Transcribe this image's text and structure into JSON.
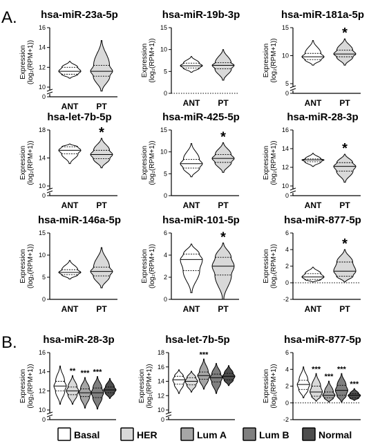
{
  "panel_labels": [
    "A.",
    "B."
  ],
  "y_label": "Expression",
  "y_label_unit": "(log₂(RPM+1))",
  "colors": {
    "Basal": "#ffffff",
    "HER": "#d9d9d9",
    "Lum A": "#a6a6a6",
    "Lum B": "#7f7f7f",
    "Normal": "#4d4d4d"
  },
  "legend": [
    "Basal",
    "HER",
    "Lum A",
    "Lum B",
    "Normal"
  ],
  "chart_data": [
    {
      "type": "violin",
      "title": "hsa-miR-23a-5p",
      "categories": [
        "ANT",
        "PT"
      ],
      "ylim": [
        0,
        16
      ],
      "ticks": [
        0,
        10,
        12,
        14,
        16
      ],
      "axis_break": true,
      "annotations": [
        "",
        ""
      ],
      "series": [
        {
          "name": "ANT",
          "fill": "#ffffff",
          "min": 10.9,
          "q1": 11.3,
          "median": 11.6,
          "q3": 12.0,
          "max": 12.6
        },
        {
          "name": "PT",
          "fill": "#d9d9d9",
          "min": 9.6,
          "q1": 11.1,
          "median": 11.6,
          "q3": 12.2,
          "max": 14.7
        }
      ]
    },
    {
      "type": "violin",
      "title": "hsa-miR-19b-3p",
      "categories": [
        "ANT",
        "PT"
      ],
      "ylim": [
        0,
        15
      ],
      "ticks": [
        0,
        5,
        10,
        15
      ],
      "axis_break": false,
      "dotted_zero": true,
      "annotations": [
        "",
        ""
      ],
      "series": [
        {
          "name": "ANT",
          "fill": "#ffffff",
          "min": 4.8,
          "q1": 5.8,
          "median": 6.3,
          "q3": 6.9,
          "max": 8.4
        },
        {
          "name": "PT",
          "fill": "#d9d9d9",
          "min": 3.0,
          "q1": 5.6,
          "median": 6.4,
          "q3": 7.0,
          "max": 10.0
        }
      ]
    },
    {
      "type": "violin",
      "title": "hsa-miR-181a-5p",
      "categories": [
        "ANT",
        "PT"
      ],
      "ylim": [
        0,
        15
      ],
      "ticks": [
        0,
        5,
        10,
        15
      ],
      "axis_break": true,
      "annotations": [
        "",
        "*"
      ],
      "series": [
        {
          "name": "ANT",
          "fill": "#ffffff",
          "min": 8.3,
          "q1": 9.3,
          "median": 9.8,
          "q3": 10.4,
          "max": 12.7
        },
        {
          "name": "PT",
          "fill": "#d9d9d9",
          "min": 8.3,
          "q1": 9.8,
          "median": 10.3,
          "q3": 11.0,
          "max": 13.0
        }
      ]
    },
    {
      "type": "violin",
      "title": "hsa-let-7b-5p",
      "categories": [
        "ANT",
        "PT"
      ],
      "ylim": [
        0,
        18
      ],
      "ticks": [
        0,
        10,
        14,
        18
      ],
      "axis_break": true,
      "annotations": [
        "",
        "*"
      ],
      "series": [
        {
          "name": "ANT",
          "fill": "#ffffff",
          "min": 13.2,
          "q1": 14.6,
          "median": 15.1,
          "q3": 15.6,
          "max": 16.0
        },
        {
          "name": "PT",
          "fill": "#d9d9d9",
          "min": 12.6,
          "q1": 13.9,
          "median": 14.5,
          "q3": 15.1,
          "max": 16.8
        }
      ]
    },
    {
      "type": "violin",
      "title": "hsa-miR-425-5p",
      "categories": [
        "ANT",
        "PT"
      ],
      "ylim": [
        0,
        15
      ],
      "ticks": [
        0,
        5,
        10,
        15
      ],
      "axis_break": false,
      "annotations": [
        "",
        "*"
      ],
      "series": [
        {
          "name": "ANT",
          "fill": "#ffffff",
          "min": 4.3,
          "q1": 6.3,
          "median": 7.3,
          "q3": 8.3,
          "max": 11.9
        },
        {
          "name": "PT",
          "fill": "#d9d9d9",
          "min": 5.3,
          "q1": 7.6,
          "median": 8.5,
          "q3": 9.4,
          "max": 12.1
        }
      ]
    },
    {
      "type": "violin",
      "title": "hsa-miR-28-3p",
      "categories": [
        "ANT",
        "PT"
      ],
      "ylim": [
        0,
        16
      ],
      "ticks": [
        0,
        10,
        12,
        14,
        16
      ],
      "axis_break": true,
      "annotations": [
        "",
        "*"
      ],
      "series": [
        {
          "name": "ANT",
          "fill": "#ffffff",
          "min": 12.1,
          "q1": 12.6,
          "median": 12.8,
          "q3": 12.9,
          "max": 13.5
        },
        {
          "name": "PT",
          "fill": "#d9d9d9",
          "min": 10.4,
          "q1": 11.6,
          "median": 12.1,
          "q3": 12.5,
          "max": 13.4
        }
      ]
    },
    {
      "type": "violin",
      "title": "hsa-miR-146a-5p",
      "categories": [
        "ANT",
        "PT"
      ],
      "ylim": [
        0,
        15
      ],
      "ticks": [
        0,
        5,
        10,
        15
      ],
      "axis_break": false,
      "annotations": [
        "",
        ""
      ],
      "series": [
        {
          "name": "ANT",
          "fill": "#ffffff",
          "min": 4.6,
          "q1": 5.6,
          "median": 6.1,
          "q3": 6.7,
          "max": 8.8
        },
        {
          "name": "PT",
          "fill": "#d9d9d9",
          "min": 2.6,
          "q1": 5.3,
          "median": 6.3,
          "q3": 7.3,
          "max": 11.7
        }
      ]
    },
    {
      "type": "violin",
      "title": "hsa-miR-101-5p",
      "categories": [
        "ANT",
        "PT"
      ],
      "ylim": [
        0,
        6
      ],
      "ticks": [
        0,
        2,
        4,
        6
      ],
      "axis_break": false,
      "annotations": [
        "",
        "*"
      ],
      "series": [
        {
          "name": "ANT",
          "fill": "#ffffff",
          "min": 0.6,
          "q1": 2.6,
          "median": 3.6,
          "q3": 4.1,
          "max": 5.0
        },
        {
          "name": "PT",
          "fill": "#d9d9d9",
          "min": 0.0,
          "q1": 2.2,
          "median": 3.0,
          "q3": 3.8,
          "max": 5.1
        }
      ]
    },
    {
      "type": "violin",
      "title": "hsa-miR-877-5p",
      "categories": [
        "ANT",
        "PT"
      ],
      "ylim": [
        -2,
        6
      ],
      "ticks": [
        -2,
        0,
        2,
        4,
        6
      ],
      "axis_break": false,
      "dotted_zero": true,
      "annotations": [
        "",
        "*"
      ],
      "series": [
        {
          "name": "ANT",
          "fill": "#ffffff",
          "min": 0.1,
          "q1": 0.4,
          "median": 0.7,
          "q3": 1.1,
          "max": 1.9
        },
        {
          "name": "PT",
          "fill": "#d9d9d9",
          "min": 0.1,
          "q1": 0.8,
          "median": 1.4,
          "q3": 2.5,
          "max": 4.0
        }
      ]
    },
    {
      "type": "violin",
      "title": "hsa-miR-28-3p",
      "categories": [
        "Basal",
        "HER",
        "Lum A",
        "Lum B",
        "Normal"
      ],
      "ylim": [
        0,
        16
      ],
      "ticks": [
        0,
        10,
        12,
        14,
        16
      ],
      "axis_break": true,
      "annotations": [
        "",
        "**",
        "***",
        "***",
        ""
      ],
      "series": [
        {
          "name": "Basal",
          "fill": "#ffffff",
          "min": 10.6,
          "q1": 12.0,
          "median": 12.5,
          "q3": 13.0,
          "max": 14.6
        },
        {
          "name": "HER",
          "fill": "#d9d9d9",
          "min": 10.6,
          "q1": 11.6,
          "median": 12.0,
          "q3": 12.4,
          "max": 13.6
        },
        {
          "name": "Lum A",
          "fill": "#a6a6a6",
          "min": 10.2,
          "q1": 11.4,
          "median": 11.8,
          "q3": 12.2,
          "max": 13.4
        },
        {
          "name": "Lum B",
          "fill": "#7f7f7f",
          "min": 10.1,
          "q1": 11.3,
          "median": 11.8,
          "q3": 12.3,
          "max": 13.5
        },
        {
          "name": "Normal",
          "fill": "#4d4d4d",
          "min": 11.2,
          "q1": 11.8,
          "median": 12.1,
          "q3": 12.4,
          "max": 13.3
        }
      ]
    },
    {
      "type": "violin",
      "title": "hsa-let-7b-5p",
      "categories": [
        "Basal",
        "HER",
        "Lum A",
        "Lum B",
        "Normal"
      ],
      "ylim": [
        0,
        18
      ],
      "ticks": [
        0,
        10,
        12,
        14,
        16,
        18
      ],
      "axis_break": true,
      "annotations": [
        "",
        "",
        "***",
        "",
        ""
      ],
      "series": [
        {
          "name": "Basal",
          "fill": "#ffffff",
          "min": 12.3,
          "q1": 13.6,
          "median": 14.2,
          "q3": 14.7,
          "max": 15.6
        },
        {
          "name": "HER",
          "fill": "#d9d9d9",
          "min": 12.5,
          "q1": 13.5,
          "median": 14.0,
          "q3": 14.5,
          "max": 15.4
        },
        {
          "name": "Lum A",
          "fill": "#a6a6a6",
          "min": 12.9,
          "q1": 14.3,
          "median": 14.8,
          "q3": 15.3,
          "max": 17.1
        },
        {
          "name": "Lum B",
          "fill": "#7f7f7f",
          "min": 12.3,
          "q1": 13.9,
          "median": 14.5,
          "q3": 15.0,
          "max": 16.5
        },
        {
          "name": "Normal",
          "fill": "#4d4d4d",
          "min": 13.4,
          "q1": 14.2,
          "median": 14.7,
          "q3": 15.1,
          "max": 16.2
        }
      ]
    },
    {
      "type": "violin",
      "title": "hsa-miR-877-5p",
      "categories": [
        "Basal",
        "HER",
        "Lum A",
        "Lum B",
        "Normal"
      ],
      "ylim": [
        -2,
        6
      ],
      "ticks": [
        -2,
        0,
        2,
        4,
        6
      ],
      "axis_break": false,
      "dotted_zero": true,
      "annotations": [
        "",
        "***",
        "***",
        "***",
        "***"
      ],
      "series": [
        {
          "name": "Basal",
          "fill": "#ffffff",
          "min": 0.6,
          "q1": 1.6,
          "median": 2.2,
          "q3": 2.7,
          "max": 4.3
        },
        {
          "name": "HER",
          "fill": "#d9d9d9",
          "min": 0.2,
          "q1": 0.8,
          "median": 1.3,
          "q3": 2.0,
          "max": 3.5
        },
        {
          "name": "Lum A",
          "fill": "#a6a6a6",
          "min": 0.1,
          "q1": 0.6,
          "median": 0.9,
          "q3": 1.3,
          "max": 2.6
        },
        {
          "name": "Lum B",
          "fill": "#7f7f7f",
          "min": 0.1,
          "q1": 0.9,
          "median": 1.5,
          "q3": 2.1,
          "max": 3.5
        },
        {
          "name": "Normal",
          "fill": "#4d4d4d",
          "min": 0.3,
          "q1": 0.6,
          "median": 0.9,
          "q3": 1.1,
          "max": 1.7
        }
      ]
    }
  ]
}
